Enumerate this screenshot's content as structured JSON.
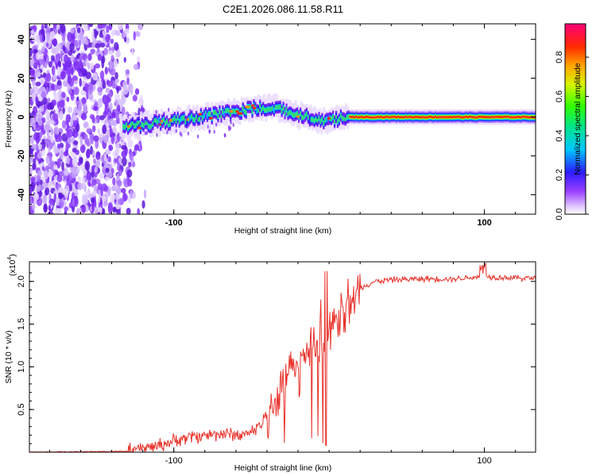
{
  "title": "C2E1.2026.086.11.58.R11",
  "chart_data": [
    {
      "type": "heatmap",
      "name": "spectrogram",
      "xlabel": "Height of straight line (km)",
      "ylabel": "Frequency (Hz)",
      "xlim": [
        -193,
        133
      ],
      "ylim": [
        -50,
        48
      ],
      "xticks": [
        -100,
        100
      ],
      "yticks": [
        -40,
        -20,
        0,
        20,
        40
      ],
      "colorbar": {
        "label": "Normalized spectral amplitude",
        "range": [
          0,
          0.97
        ],
        "ticks": [
          "0.0",
          "0.2",
          "0.4",
          "0.6",
          "0.8"
        ],
        "tick_values": [
          0.0,
          0.2,
          0.4,
          0.6,
          0.8
        ]
      },
      "ridge": {
        "x": [
          -130,
          -110,
          -90,
          -75,
          -60,
          -45,
          -35,
          -25,
          -15,
          -5,
          5,
          12,
          40,
          70,
          100,
          133
        ],
        "freq": [
          -5,
          -3,
          -1,
          1,
          3,
          5,
          5,
          2,
          0,
          -2,
          -1,
          0,
          0,
          0,
          0,
          0
        ]
      }
    },
    {
      "type": "line",
      "name": "snr",
      "xlabel": "Height of straight line (km)",
      "ylabel": "SNR (10 * v/v)",
      "multiplier": "(x10",
      "multiplier_exp": "4",
      "xlim": [
        -193,
        133
      ],
      "ylim": [
        0,
        2.23
      ],
      "xticks": [
        -100,
        100
      ],
      "yticks": [
        0.5,
        1.0,
        1.5,
        2.0
      ],
      "ytick_labels": [
        "0.5",
        "1.0",
        "1.5",
        "2.0"
      ],
      "color": "#e8332c",
      "series": [
        {
          "name": "SNR",
          "x": [
            -193,
            -130,
            -110,
            -90,
            -70,
            -55,
            -45,
            -38,
            -32,
            -27,
            -24,
            -20,
            -15,
            -10,
            -5,
            0,
            5,
            10,
            15,
            20,
            25,
            30,
            40,
            60,
            80,
            100,
            120,
            133
          ],
          "y": [
            0.0,
            0.01,
            0.08,
            0.18,
            0.22,
            0.2,
            0.3,
            0.5,
            0.7,
            0.85,
            1.0,
            0.95,
            1.1,
            1.3,
            1.2,
            1.4,
            1.55,
            1.7,
            1.82,
            1.92,
            1.97,
            2.0,
            2.02,
            2.03,
            2.03,
            2.06,
            2.04,
            2.04
          ]
        }
      ]
    }
  ]
}
